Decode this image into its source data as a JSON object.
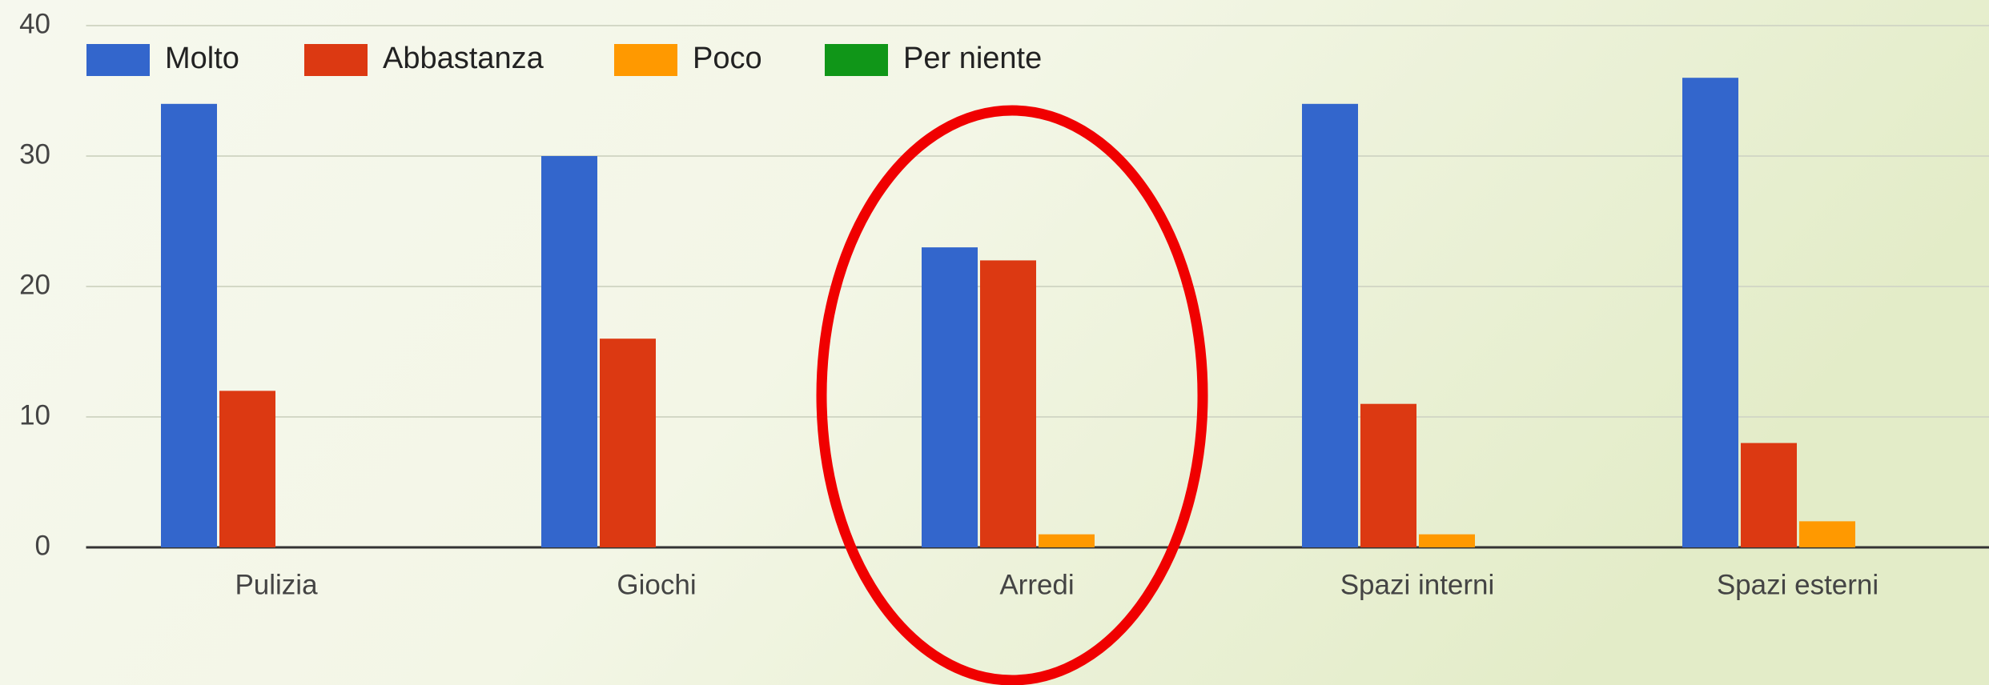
{
  "chart_data": {
    "type": "bar",
    "categories": [
      "Pulizia",
      "Giochi",
      "Arredi",
      "Spazi interni",
      "Spazi esterni"
    ],
    "series": [
      {
        "name": "Molto",
        "color": "#3366cc",
        "values": [
          34,
          30,
          23,
          34,
          36
        ]
      },
      {
        "name": "Abbastanza",
        "color": "#dc3912",
        "values": [
          12,
          16,
          22,
          11,
          8
        ]
      },
      {
        "name": "Poco",
        "color": "#ff9900",
        "values": [
          0,
          0,
          1,
          1,
          2
        ]
      },
      {
        "name": "Per niente",
        "color": "#109618",
        "values": [
          0,
          0,
          0,
          0,
          0
        ]
      }
    ],
    "ylim": [
      0,
      40
    ],
    "yticks": [
      0,
      10,
      20,
      30,
      40
    ],
    "grid": true,
    "legend": "top"
  }
}
